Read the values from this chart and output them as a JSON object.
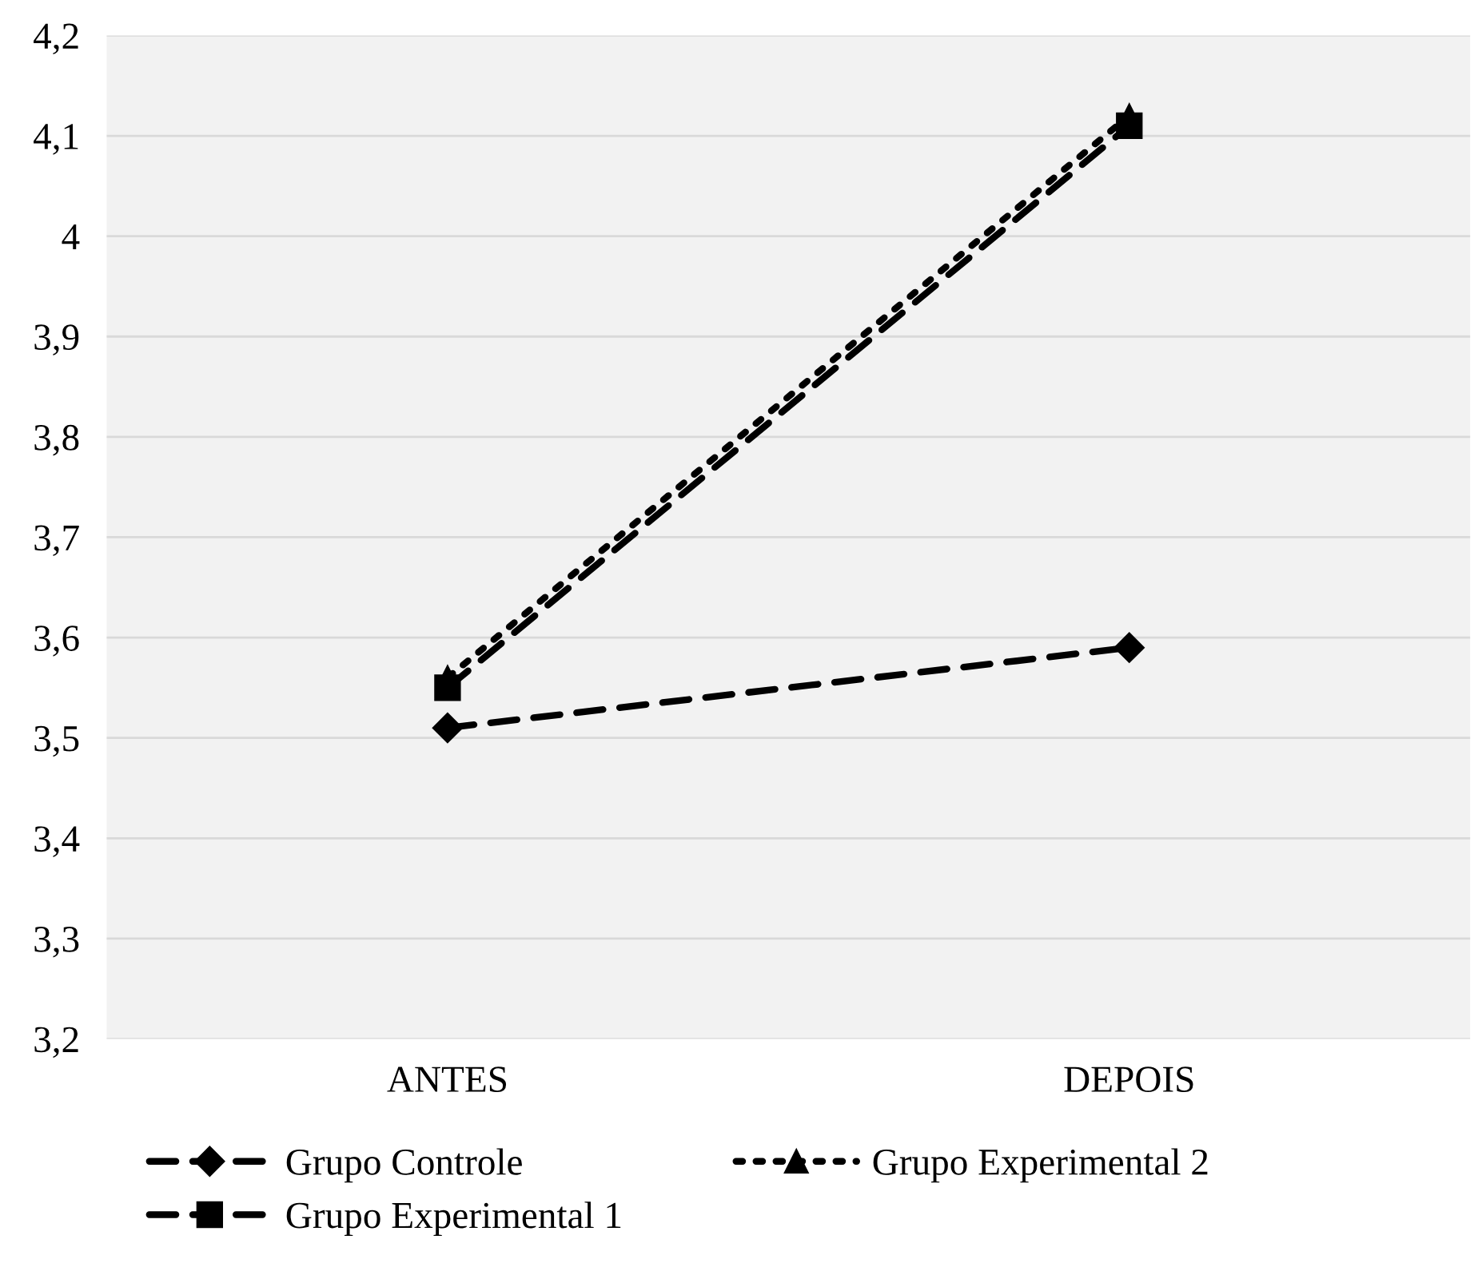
{
  "chart_data": {
    "type": "line",
    "categories": [
      "ANTES",
      "DEPOIS"
    ],
    "series": [
      {
        "name": "Grupo Controle",
        "color": "#000000",
        "values": [
          3.51,
          3.59
        ],
        "line_style": "dashed",
        "marker": "diamond"
      },
      {
        "name": "Grupo Experimental 1",
        "color": "#000000",
        "values": [
          3.55,
          4.11
        ],
        "line_style": "dashed",
        "marker": "square"
      },
      {
        "name": "Grupo Experimental 2",
        "color": "#000000",
        "values": [
          3.56,
          4.12
        ],
        "line_style": "dotted",
        "marker": "triangle"
      }
    ],
    "ylim": [
      3.2,
      4.2
    ],
    "yticks": [
      {
        "value": 3.2,
        "label": "3,2"
      },
      {
        "value": 3.3,
        "label": "3,3"
      },
      {
        "value": 3.4,
        "label": "3,4"
      },
      {
        "value": 3.5,
        "label": "3,5"
      },
      {
        "value": 3.6,
        "label": "3,6"
      },
      {
        "value": 3.7,
        "label": "3,7"
      },
      {
        "value": 3.8,
        "label": "3,8"
      },
      {
        "value": 3.9,
        "label": "3,9"
      },
      {
        "value": 4,
        "label": "4"
      },
      {
        "value": 4.1,
        "label": "4,1"
      },
      {
        "value": 4.2,
        "label": "4,2"
      }
    ],
    "grid": "y",
    "legend": "bottom"
  }
}
